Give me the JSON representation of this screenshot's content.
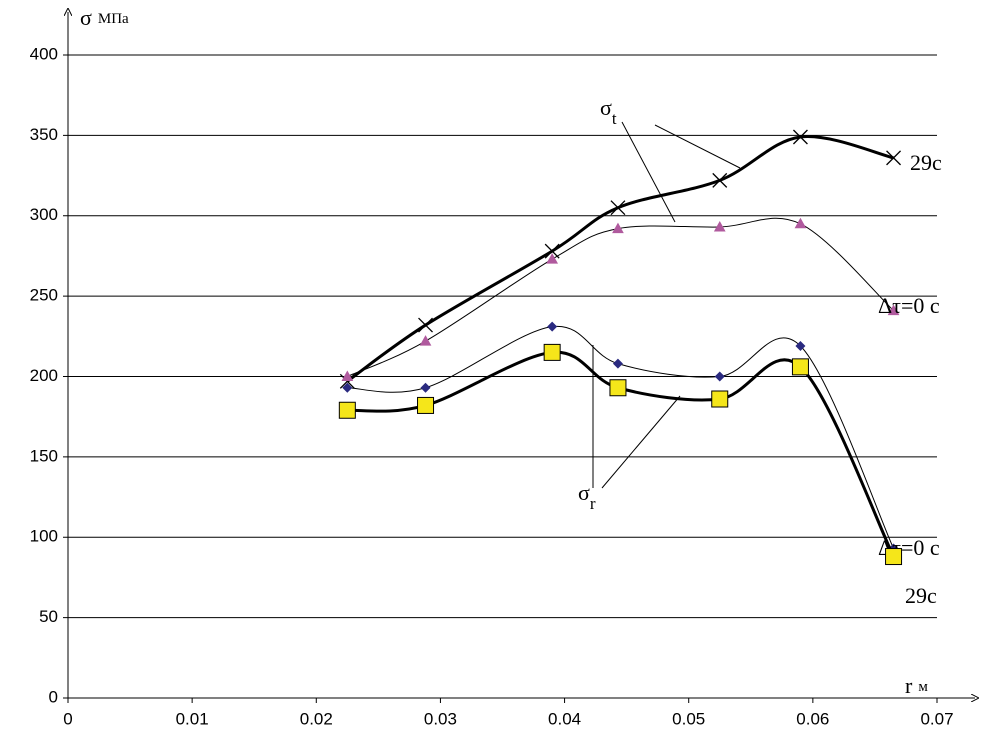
{
  "chart_data": {
    "type": "line",
    "y_label": {
      "main": "σ",
      "unit": "МПа"
    },
    "x_label": {
      "main": "r",
      "unit": "м"
    },
    "xlim": [
      0,
      0.07
    ],
    "xticks": [
      0,
      0.01,
      0.02,
      0.03,
      0.04,
      0.05,
      0.06,
      0.07
    ],
    "ylim": [
      0,
      400
    ],
    "yticks": [
      0,
      50,
      100,
      150,
      200,
      250,
      300,
      350,
      400
    ],
    "grid": true,
    "series": [
      {
        "x": [
          0.0225,
          0.0288,
          0.039,
          0.0443,
          0.0525,
          0.059,
          0.0665
        ],
        "values": [
          197,
          232,
          278,
          305,
          322,
          349,
          336
        ],
        "color": "#000000",
        "marker": "cross",
        "width": 3,
        "end_label": "29c"
      },
      {
        "x": [
          0.0225,
          0.0288,
          0.039,
          0.0443,
          0.0525,
          0.059,
          0.0665
        ],
        "values": [
          200,
          222,
          273,
          292,
          293,
          295,
          241
        ],
        "color": "#000000",
        "marker": "triangle",
        "marker_color": "#b05a9e",
        "width": 1,
        "end_label": "Δτ=0 c"
      },
      {
        "x": [
          0.0225,
          0.0288,
          0.039,
          0.0443,
          0.0525,
          0.059,
          0.0665
        ],
        "values": [
          193,
          193,
          231,
          208,
          200,
          219,
          93
        ],
        "color": "#000000",
        "marker": "diamond",
        "marker_color": "#2a2a80",
        "width": 1,
        "end_label": "Δτ=0 c"
      },
      {
        "x": [
          0.0225,
          0.0288,
          0.039,
          0.0443,
          0.0525,
          0.059,
          0.0665
        ],
        "values": [
          179,
          182,
          215,
          193,
          186,
          206,
          88
        ],
        "color": "#000000",
        "marker": "square",
        "marker_color": "#f5e61a",
        "width": 3,
        "end_label": "29c"
      }
    ],
    "annotations": [
      {
        "main": "σ",
        "sub": "t"
      },
      {
        "main": "σ",
        "sub": "r"
      }
    ]
  }
}
